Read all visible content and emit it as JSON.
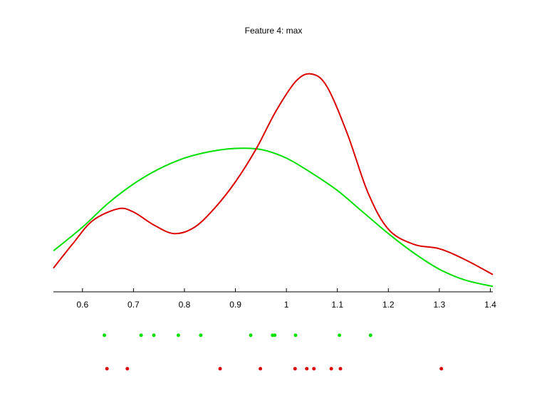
{
  "chart_data": {
    "type": "line",
    "title": "Feature 4: max",
    "xlabel": "",
    "ylabel": "",
    "xlim": [
      0.543,
      1.405
    ],
    "ylim": [
      0,
      1
    ],
    "grid": false,
    "legend": "none",
    "x_ticks": [
      0.6,
      0.7,
      0.8,
      0.9,
      1.0,
      1.1,
      1.2,
      1.3,
      1.4
    ],
    "x_tick_labels": [
      "0.6",
      "0.7",
      "0.8",
      "0.9",
      "1",
      "1.1",
      "1.2",
      "1.3",
      "1.4"
    ],
    "series": [
      {
        "color": "#00e000",
        "x": [
          0.543,
          0.6,
          0.65,
          0.7,
          0.75,
          0.8,
          0.85,
          0.9,
          0.95,
          1.0,
          1.05,
          1.1,
          1.15,
          1.2,
          1.25,
          1.3,
          1.35,
          1.405
        ],
        "y": [
          0.19,
          0.3,
          0.41,
          0.5,
          0.57,
          0.62,
          0.65,
          0.665,
          0.66,
          0.62,
          0.55,
          0.47,
          0.37,
          0.27,
          0.18,
          0.105,
          0.055,
          0.025
        ],
        "markers": [
          0.643,
          0.715,
          0.74,
          0.788,
          0.832,
          0.93,
          0.973,
          0.977,
          1.018,
          1.104,
          1.165
        ]
      },
      {
        "color": "#dd0000",
        "x": [
          0.543,
          0.58,
          0.62,
          0.67,
          0.7,
          0.74,
          0.78,
          0.82,
          0.86,
          0.9,
          0.94,
          0.98,
          1.02,
          1.05,
          1.08,
          1.12,
          1.16,
          1.2,
          1.25,
          1.3,
          1.35,
          1.405
        ],
        "y": [
          0.11,
          0.22,
          0.33,
          0.385,
          0.37,
          0.31,
          0.27,
          0.3,
          0.39,
          0.51,
          0.66,
          0.84,
          0.98,
          1.01,
          0.95,
          0.73,
          0.46,
          0.29,
          0.22,
          0.2,
          0.15,
          0.08
        ],
        "markers": [
          0.648,
          0.688,
          0.87,
          0.949,
          1.017,
          1.04,
          1.054,
          1.088,
          1.106,
          1.304
        ]
      }
    ]
  }
}
